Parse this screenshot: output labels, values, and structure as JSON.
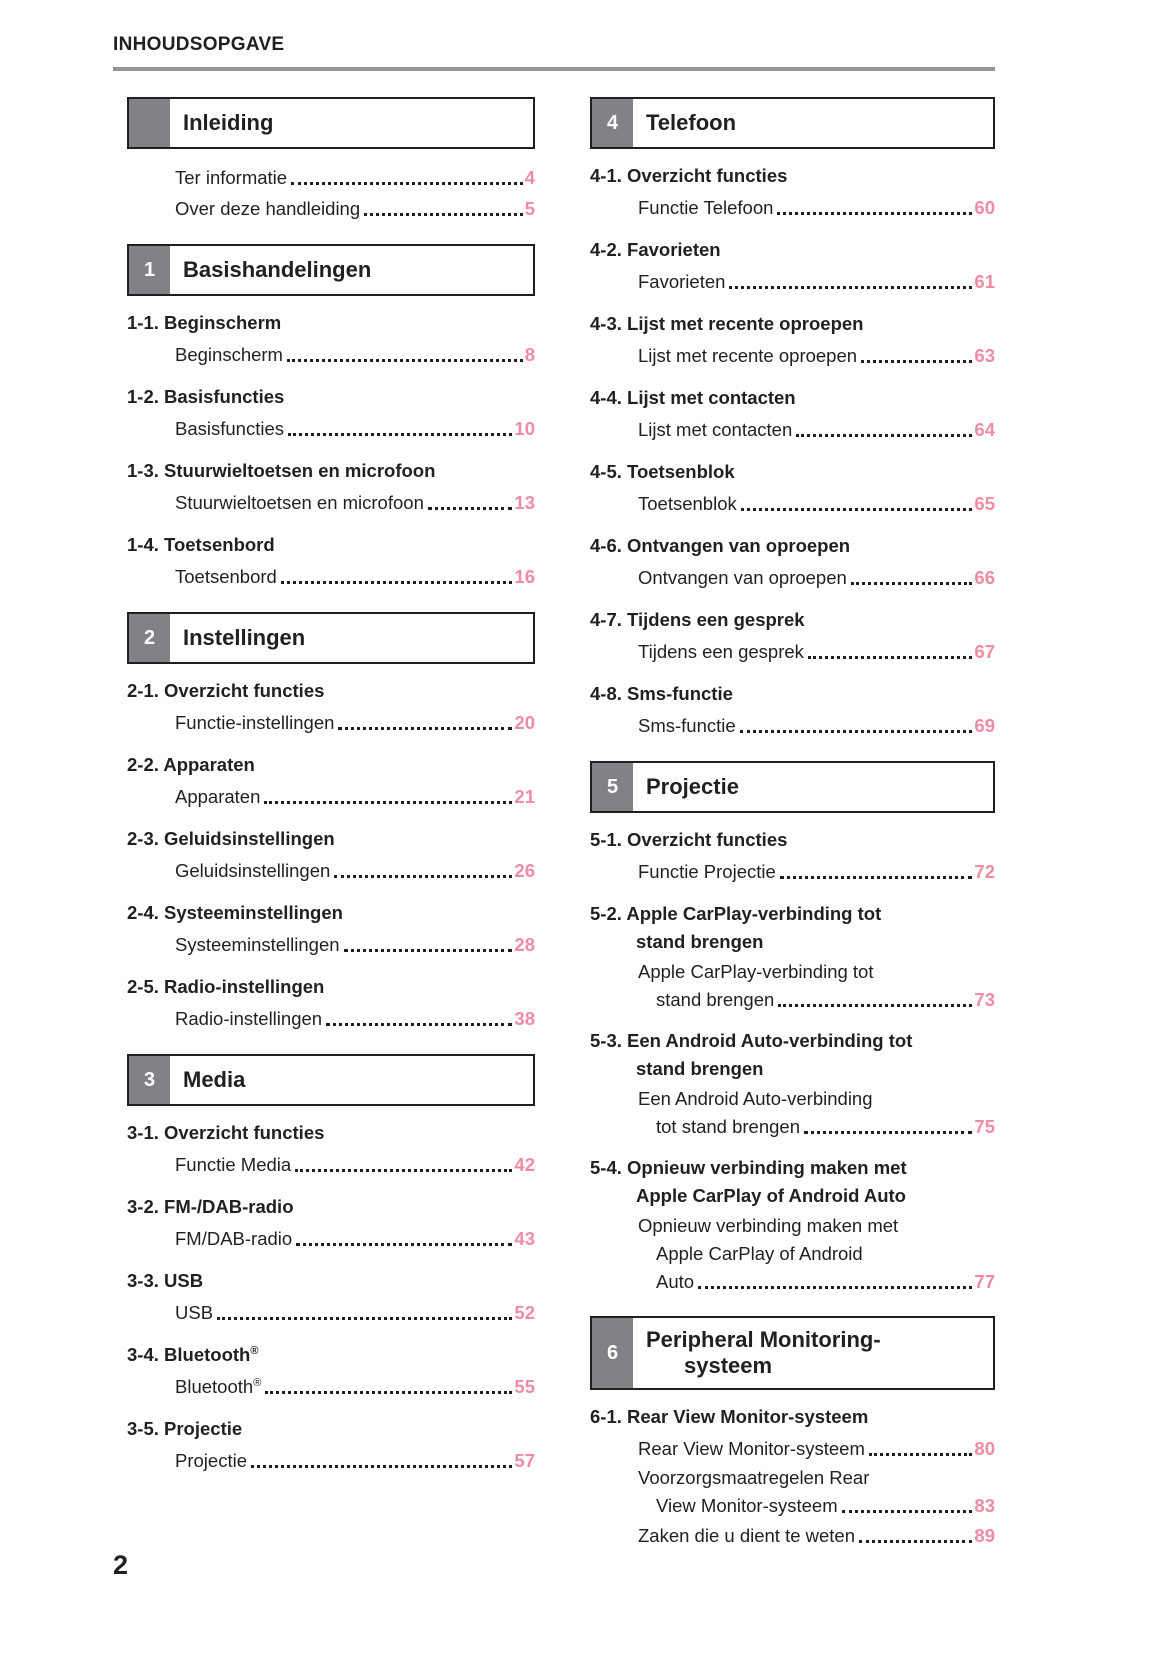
{
  "page": {
    "header_title": "INHOUDSOPGAVE",
    "footer_page_number": "2"
  },
  "colors": {
    "accent_pink": "#ef8ca3",
    "tab_gray": "#808285",
    "rule_gray": "#939598"
  },
  "columns": {
    "left": {
      "sections": [
        {
          "tab": "",
          "title": "Inleiding",
          "groups": [
            {
              "entries": [
                {
                  "label": "Ter informatie",
                  "page": "4"
                },
                {
                  "label": "Over deze handleiding",
                  "page": "5"
                }
              ]
            }
          ]
        },
        {
          "tab": "1",
          "title": "Basishandelingen",
          "groups": [
            {
              "heading": "1-1. Beginscherm",
              "entries": [
                {
                  "label": "Beginscherm",
                  "page": "8"
                }
              ]
            },
            {
              "heading": "1-2. Basisfuncties",
              "entries": [
                {
                  "label": "Basisfuncties",
                  "page": "10"
                }
              ]
            },
            {
              "heading": "1-3. Stuurwieltoetsen en microfoon",
              "entries": [
                {
                  "label": "Stuurwieltoetsen en microfoon",
                  "page": "13"
                }
              ]
            },
            {
              "heading": "1-4. Toetsenbord",
              "entries": [
                {
                  "label": "Toetsenbord",
                  "page": "16"
                }
              ]
            }
          ]
        },
        {
          "tab": "2",
          "title": "Instellingen",
          "groups": [
            {
              "heading": "2-1. Overzicht functies",
              "entries": [
                {
                  "label": "Functie-instellingen",
                  "page": "20"
                }
              ]
            },
            {
              "heading": "2-2. Apparaten",
              "entries": [
                {
                  "label": "Apparaten",
                  "page": "21"
                }
              ]
            },
            {
              "heading": "2-3. Geluidsinstellingen",
              "entries": [
                {
                  "label": "Geluidsinstellingen",
                  "page": "26"
                }
              ]
            },
            {
              "heading": "2-4. Systeeminstellingen",
              "entries": [
                {
                  "label": "Systeeminstellingen",
                  "page": "28"
                }
              ]
            },
            {
              "heading": "2-5. Radio-instellingen",
              "entries": [
                {
                  "label": "Radio-instellingen",
                  "page": "38"
                }
              ]
            }
          ]
        },
        {
          "tab": "3",
          "title": "Media",
          "groups": [
            {
              "heading": "3-1. Overzicht functies",
              "entries": [
                {
                  "label": "Functie Media",
                  "page": "42"
                }
              ]
            },
            {
              "heading": "3-2. FM-/DAB-radio",
              "entries": [
                {
                  "label": "FM/DAB-radio",
                  "page": "43"
                }
              ]
            },
            {
              "heading": "3-3. USB",
              "entries": [
                {
                  "label": "USB",
                  "page": "52"
                }
              ]
            },
            {
              "heading": "3-4. Bluetooth",
              "heading_sup": "®",
              "entries": [
                {
                  "label": "Bluetooth",
                  "sup": "®",
                  "page": "55"
                }
              ]
            },
            {
              "heading": "3-5. Projectie",
              "entries": [
                {
                  "label": "Projectie",
                  "page": "57"
                }
              ]
            }
          ]
        }
      ]
    },
    "right": {
      "sections": [
        {
          "tab": "4",
          "title": "Telefoon",
          "groups": [
            {
              "heading": "4-1. Overzicht functies",
              "entries": [
                {
                  "label": "Functie Telefoon",
                  "page": "60"
                }
              ]
            },
            {
              "heading": "4-2. Favorieten",
              "entries": [
                {
                  "label": "Favorieten",
                  "page": "61"
                }
              ]
            },
            {
              "heading": "4-3. Lijst met recente oproepen",
              "entries": [
                {
                  "label": "Lijst met recente oproepen",
                  "page": "63"
                }
              ]
            },
            {
              "heading": "4-4. Lijst met contacten",
              "entries": [
                {
                  "label": "Lijst met contacten",
                  "page": "64"
                }
              ]
            },
            {
              "heading": "4-5. Toetsenblok",
              "entries": [
                {
                  "label": "Toetsenblok",
                  "page": "65"
                }
              ]
            },
            {
              "heading": "4-6. Ontvangen van oproepen",
              "entries": [
                {
                  "label": "Ontvangen van oproepen",
                  "page": "66"
                }
              ]
            },
            {
              "heading": "4-7. Tijdens een gesprek",
              "entries": [
                {
                  "label": "Tijdens een gesprek",
                  "page": "67"
                }
              ]
            },
            {
              "heading": "4-8. Sms-functie",
              "entries": [
                {
                  "label": "Sms-functie",
                  "page": "69"
                }
              ]
            }
          ]
        },
        {
          "tab": "5",
          "title": "Projectie",
          "groups": [
            {
              "heading": "5-1. Overzicht functies",
              "entries": [
                {
                  "label": "Functie Projectie",
                  "page": "72"
                }
              ]
            },
            {
              "heading": "5-2. Apple CarPlay-verbinding tot",
              "heading_line2": "stand brengen",
              "entries": [
                {
                  "lines": [
                    "Apple CarPlay-verbinding tot"
                  ],
                  "label": "stand brengen",
                  "page": "73"
                }
              ]
            },
            {
              "heading": "5-3. Een Android Auto-verbinding tot",
              "heading_line2": "stand brengen",
              "entries": [
                {
                  "lines": [
                    "Een Android Auto-verbinding"
                  ],
                  "label": "tot stand brengen",
                  "page": "75"
                }
              ]
            },
            {
              "heading": "5-4. Opnieuw verbinding maken met",
              "heading_line2": "Apple CarPlay of Android Auto",
              "entries": [
                {
                  "lines": [
                    "Opnieuw verbinding maken met",
                    "Apple CarPlay of Android"
                  ],
                  "label": "Auto",
                  "page": "77"
                }
              ]
            }
          ]
        },
        {
          "tab": "6",
          "title": "Peripheral Monitoring-",
          "title_line2": "systeem",
          "groups": [
            {
              "heading": "6-1. Rear View Monitor-systeem",
              "entries": [
                {
                  "label": "Rear View Monitor-systeem",
                  "page": "80"
                },
                {
                  "lines": [
                    "Voorzorgsmaatregelen Rear"
                  ],
                  "label": "View Monitor-systeem",
                  "page": "83"
                },
                {
                  "label": "Zaken die u dient te weten",
                  "page": "89"
                }
              ]
            }
          ]
        }
      ]
    }
  }
}
